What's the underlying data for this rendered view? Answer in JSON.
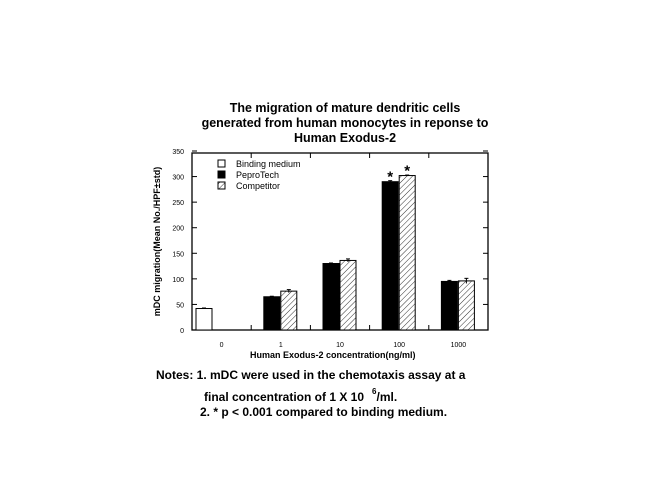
{
  "title_lines": [
    "The migration of mature dendritic cells",
    "generated from human monocytes in reponse to",
    "Human Exodus-2"
  ],
  "notes": {
    "line1": "Notes: 1. mDC were used in the chemotaxis assay at a",
    "line2_prefix": "final concentration of 1 X 10",
    "line2_sup": "6",
    "line2_suffix": "/ml.",
    "line3": "2. * p < 0.001 compared to binding medium."
  },
  "chart_data": {
    "type": "bar",
    "title": "The migration of mature dendritic cells generated from human monocytes in reponse to Human Exodus-2",
    "xlabel": "Human Exodus-2 concentration(ng/ml)",
    "ylabel": "mDC migration(Mean No./HPF±std)",
    "ylim": [
      0,
      350
    ],
    "yticks": [
      0,
      50,
      100,
      150,
      200,
      250,
      300,
      350
    ],
    "categories": [
      "0",
      "1",
      "10",
      "100",
      "1000"
    ],
    "series": [
      {
        "name": "Binding medium",
        "fill": "white",
        "values": [
          42,
          null,
          null,
          null,
          null
        ],
        "errors": [
          1,
          null,
          null,
          null,
          null
        ]
      },
      {
        "name": "PeproTech",
        "fill": "black",
        "values": [
          null,
          65,
          130,
          290,
          95
        ],
        "errors": [
          null,
          1,
          1,
          2,
          2
        ]
      },
      {
        "name": "Competitor",
        "fill": "hatched",
        "values": [
          null,
          76,
          136,
          302,
          96
        ],
        "errors": [
          null,
          3,
          3,
          1,
          5
        ]
      }
    ],
    "annotations": [
      {
        "category": "100",
        "series": "PeproTech",
        "text": "*"
      },
      {
        "category": "100",
        "series": "Competitor",
        "text": "*"
      }
    ],
    "legend": {
      "position": "upper-left",
      "entries": [
        "Binding medium",
        "PeproTech",
        "Competitor"
      ]
    },
    "grid": false
  }
}
